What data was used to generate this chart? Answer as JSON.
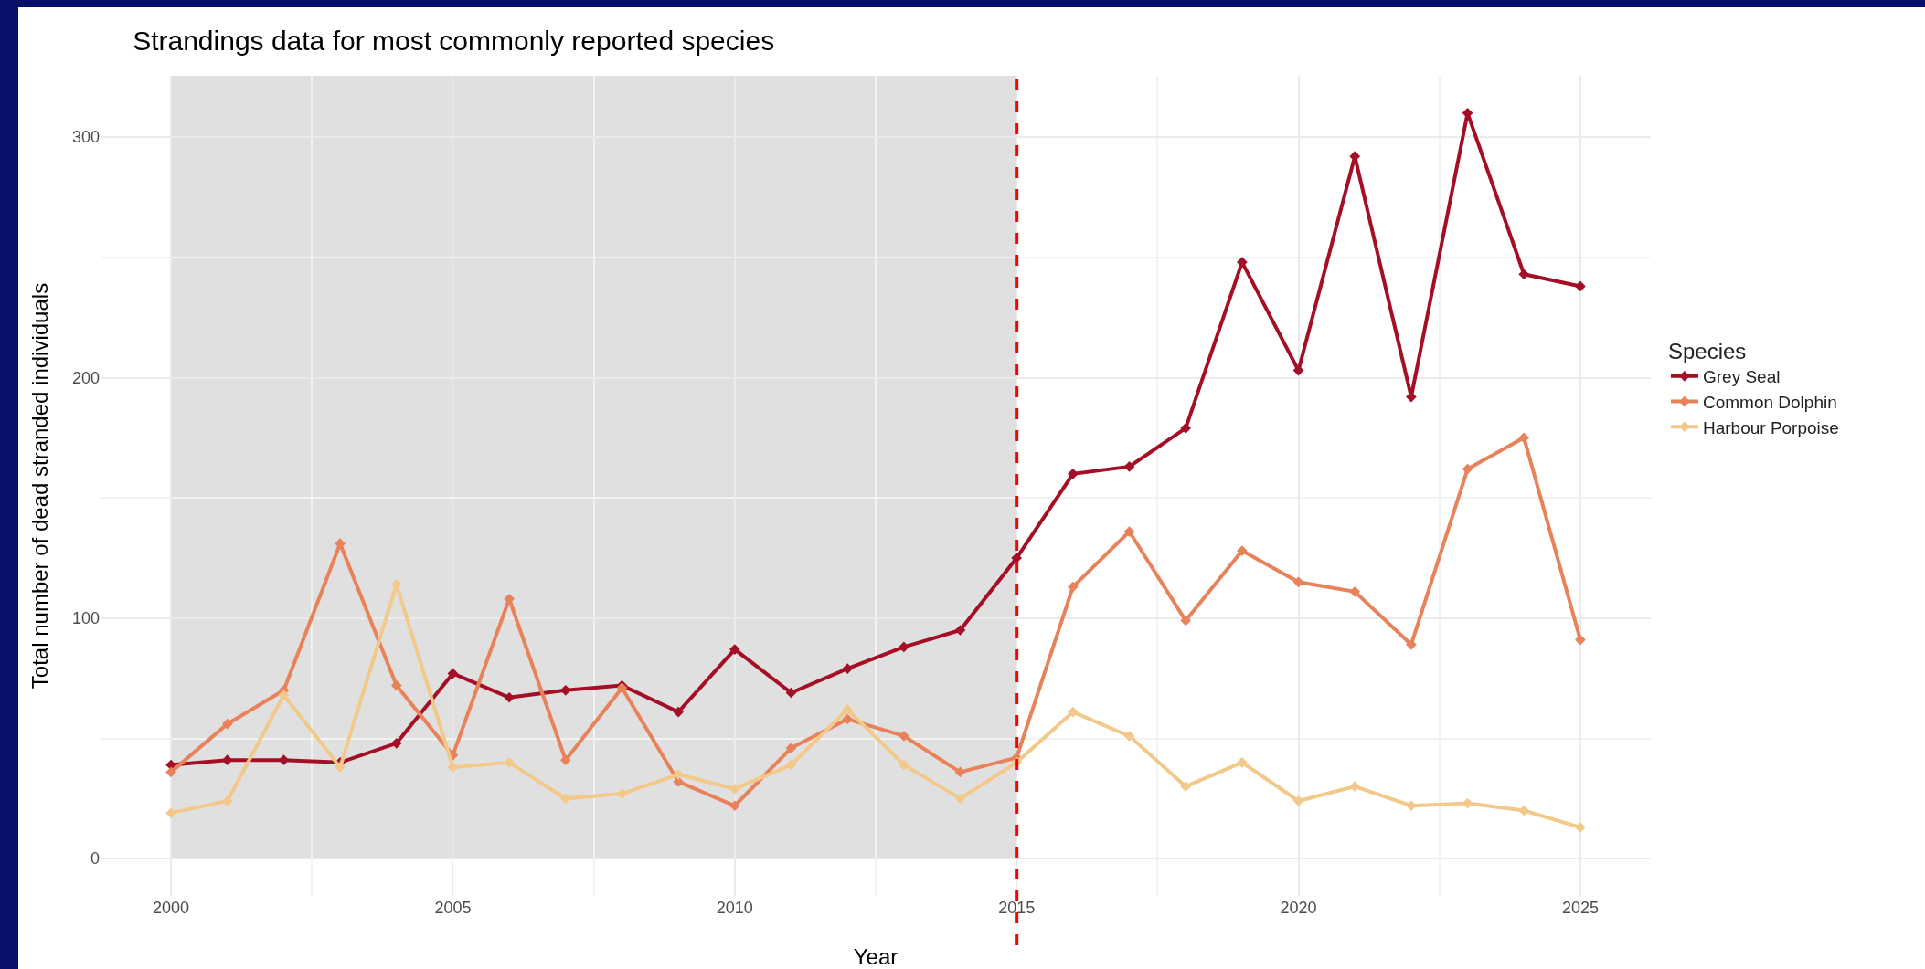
{
  "chart_data": {
    "type": "line",
    "title": "Strandings data for most commonly reported species",
    "xlabel": "Year",
    "ylabel": "Total number of dead stranded individuals",
    "legend_title": "Species",
    "x": [
      2000,
      2001,
      2002,
      2003,
      2004,
      2005,
      2006,
      2007,
      2008,
      2009,
      2010,
      2011,
      2012,
      2013,
      2014,
      2015,
      2016,
      2017,
      2018,
      2019,
      2020,
      2021,
      2022,
      2023,
      2024,
      2025
    ],
    "series": [
      {
        "name": "Grey Seal",
        "color": "#a50f26",
        "values": [
          39,
          41,
          41,
          40,
          48,
          77,
          67,
          70,
          72,
          61,
          87,
          69,
          79,
          88,
          95,
          125,
          160,
          163,
          179,
          248,
          203,
          292,
          192,
          310,
          243,
          238
        ]
      },
      {
        "name": "Common Dolphin",
        "color": "#e8825a",
        "values": [
          36,
          56,
          70,
          131,
          72,
          43,
          108,
          41,
          71,
          32,
          22,
          46,
          58,
          51,
          36,
          42,
          113,
          136,
          99,
          128,
          115,
          111,
          89,
          162,
          175,
          91
        ]
      },
      {
        "name": "Harbour Porpoise",
        "color": "#f2c98a",
        "values": [
          19,
          24,
          68,
          38,
          114,
          38,
          40,
          25,
          27,
          35,
          29,
          39,
          62,
          39,
          25,
          40,
          61,
          51,
          30,
          40,
          24,
          30,
          22,
          23,
          20,
          13
        ]
      }
    ],
    "xlim": [
      1998.75,
      2026.25
    ],
    "xticks": [
      2000,
      2005,
      2010,
      2015,
      2020,
      2025
    ],
    "ylim": [
      -15.5,
      325.5
    ],
    "yticks": [
      0,
      100,
      200,
      300
    ],
    "bands": [
      {
        "axis": "x",
        "from": 2000,
        "to": 2015,
        "color": "#e0e0e0"
      }
    ],
    "ref_lines": [
      {
        "axis": "x",
        "value": 2015,
        "color": "#ff0000",
        "line_style": "dashed"
      }
    ],
    "grid": true,
    "legend": "right",
    "marker": "diamond",
    "line_style": "solid"
  }
}
